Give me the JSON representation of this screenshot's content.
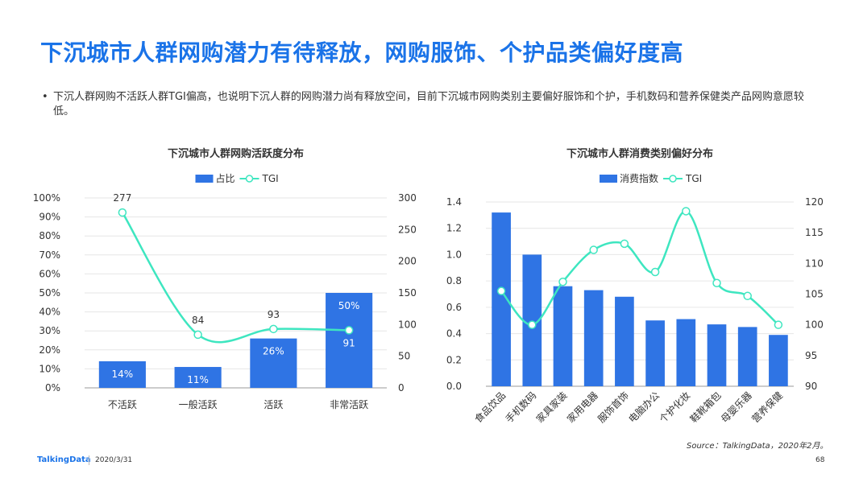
{
  "page": {
    "title": "下沉城市人群网购潜力有待释放，网购服饰、个护品类偏好度高",
    "bullet_symbol": "•",
    "bullet_text": "下沉人群网购不活跃人群TGI偏高，也说明下沉人群的网购潜力尚有释放空间，目前下沉城市网购类别主要偏好服饰和个护，手机数码和营养保健类产品网购意愿较低。",
    "source": "Source：TalkingData，2020年2月。",
    "footer_brand": "TalkingData",
    "footer_date": "2020/3/31",
    "page_number": "68",
    "colors": {
      "title": "#1a73e8",
      "bar": "#2f74e4",
      "line": "#3ee6c0",
      "grid": "#e6e6e6"
    }
  },
  "chart_data": [
    {
      "type": "bar",
      "title": "下沉城市人群网购活跃度分布",
      "categories": [
        "不活跃",
        "一般活跃",
        "活跃",
        "非常活跃"
      ],
      "series": [
        {
          "name": "占比",
          "kind": "bar",
          "axis": "left",
          "values": [
            14,
            11,
            26,
            50
          ],
          "labels": [
            "14%",
            "11%",
            "26%",
            "50%"
          ]
        },
        {
          "name": "TGI",
          "kind": "line",
          "axis": "right",
          "values": [
            277,
            84,
            93,
            91
          ],
          "labels": [
            "277",
            "84",
            "93",
            "91"
          ]
        }
      ],
      "y_left": {
        "min": 0,
        "max": 100,
        "ticks": [
          "0%",
          "10%",
          "20%",
          "30%",
          "40%",
          "50%",
          "60%",
          "70%",
          "80%",
          "90%",
          "100%"
        ]
      },
      "y_right": {
        "min": 0,
        "max": 300,
        "ticks": [
          "0",
          "50",
          "100",
          "150",
          "200",
          "250",
          "300"
        ]
      },
      "legend": "top-center",
      "grid": true
    },
    {
      "type": "bar",
      "title": "下沉城市人群消费类别偏好分布",
      "categories": [
        "食品饮品",
        "手机数码",
        "家具家装",
        "家用电器",
        "服饰首饰",
        "电脑办公",
        "个护化妆",
        "鞋靴箱包",
        "母婴乐器",
        "营养保健"
      ],
      "series": [
        {
          "name": "消费指数",
          "kind": "bar",
          "axis": "left",
          "values": [
            1.32,
            1.0,
            0.76,
            0.73,
            0.68,
            0.5,
            0.51,
            0.47,
            0.45,
            0.39
          ]
        },
        {
          "name": "TGI",
          "kind": "line",
          "axis": "right",
          "values": [
            105.5,
            100,
            107,
            112.2,
            113.2,
            108.6,
            118.5,
            106.8,
            104.7,
            100
          ]
        }
      ],
      "y_left": {
        "min": 0,
        "max": 1.4,
        "ticks": [
          "0.0",
          "0.2",
          "0.4",
          "0.6",
          "0.8",
          "1.0",
          "1.2",
          "1.4"
        ]
      },
      "y_right": {
        "min": 90,
        "max": 120,
        "ticks": [
          "90",
          "95",
          "100",
          "105",
          "110",
          "115",
          "120"
        ]
      },
      "legend": "top-center",
      "grid": true
    }
  ]
}
